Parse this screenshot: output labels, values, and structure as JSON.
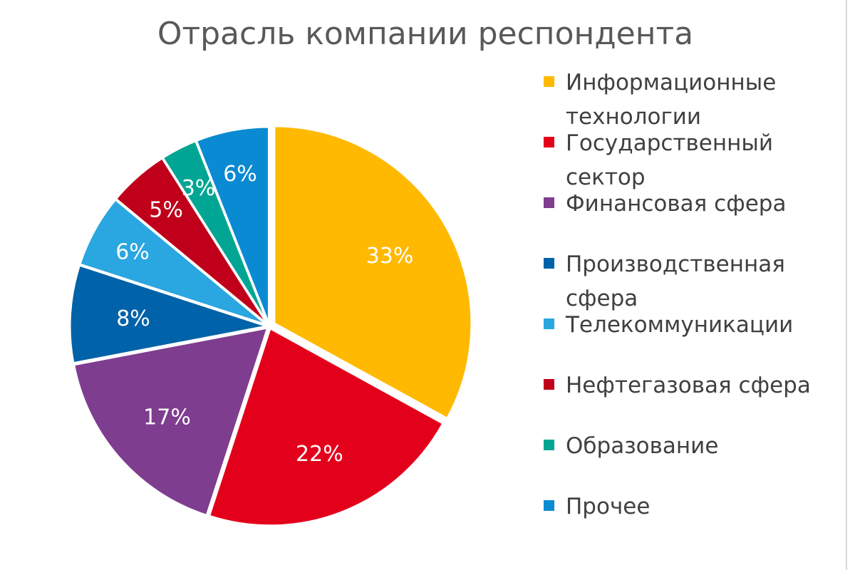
{
  "chart_data": {
    "type": "pie",
    "title": "Отрасль компании респондента",
    "slices": [
      {
        "name": "Информационные технологии",
        "legend_lines": [
          "Информационные",
          "технологии"
        ],
        "value": 33,
        "label": "33%",
        "color": "#FFB900"
      },
      {
        "name": "Государственный сектор",
        "legend_lines": [
          "Государственный",
          "сектор"
        ],
        "value": 22,
        "label": "22%",
        "color": "#E3001B"
      },
      {
        "name": "Финансовая сфера",
        "legend_lines": [
          "Финансовая сфера"
        ],
        "value": 17,
        "label": "17%",
        "color": "#7E3D8F"
      },
      {
        "name": "Производственная сфера",
        "legend_lines": [
          "Производственная",
          "сфера"
        ],
        "value": 8,
        "label": "8%",
        "color": "#0062A8"
      },
      {
        "name": "Телекоммуникации",
        "legend_lines": [
          "Телекоммуникации"
        ],
        "value": 6,
        "label": "6%",
        "color": "#2AA6E0"
      },
      {
        "name": "Нефтегазовая сфера",
        "legend_lines": [
          "Нефтегазовая сфера"
        ],
        "value": 5,
        "label": "5%",
        "color": "#C0001A"
      },
      {
        "name": "Образование",
        "legend_lines": [
          "Образование"
        ],
        "value": 3,
        "label": "3%",
        "color": "#00A693"
      },
      {
        "name": "Прочее",
        "legend_lines": [
          "Прочее"
        ],
        "value": 6,
        "label": "6%",
        "color": "#0A8AD2"
      }
    ],
    "legend_position": "right"
  }
}
